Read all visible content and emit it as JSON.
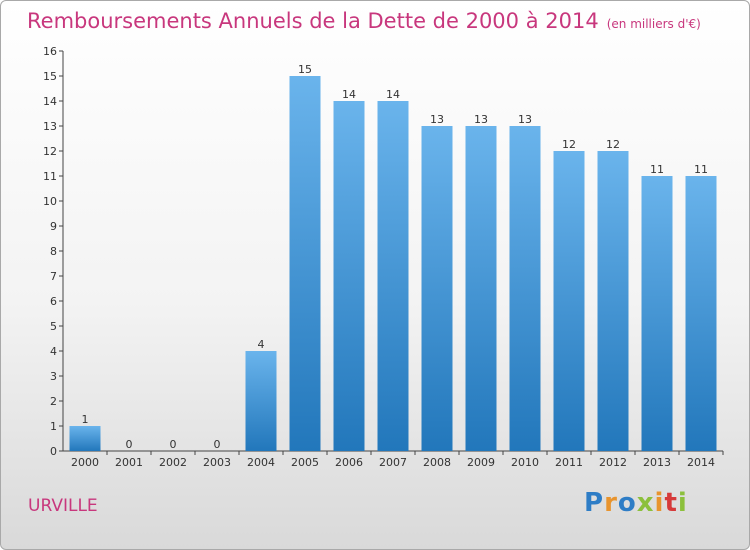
{
  "header": {
    "title": "Remboursements Annuels de la Dette de 2000 à 2014",
    "unit": "(en milliers d'€)"
  },
  "footer": {
    "place": "URVILLE",
    "logo": "Proxiti"
  },
  "colors": {
    "title": "#c8377d",
    "bar_light": "#6ab4ec",
    "bar_dark": "#2277bb",
    "logo": [
      "#2e7dc6",
      "#e8942e",
      "#2e7dc6",
      "#8cc03c",
      "#e8942e",
      "#d63a3a",
      "#8cc03c"
    ]
  },
  "chart_data": {
    "type": "bar",
    "categories": [
      "2000",
      "2001",
      "2002",
      "2003",
      "2004",
      "2005",
      "2006",
      "2007",
      "2008",
      "2009",
      "2010",
      "2011",
      "2012",
      "2013",
      "2014"
    ],
    "values": [
      1,
      0,
      0,
      0,
      4,
      15,
      14,
      14,
      13,
      13,
      13,
      12,
      12,
      11,
      11
    ],
    "data_labels": [
      "1",
      "0",
      "0",
      "0",
      "4",
      "15",
      "14",
      "14",
      "13",
      "13",
      "13",
      "12",
      "12",
      "11",
      "11"
    ],
    "yticks": [
      0,
      1,
      2,
      3,
      4,
      5,
      6,
      7,
      8,
      9,
      10,
      11,
      12,
      13,
      14,
      15,
      16
    ],
    "ylim": [
      0,
      16
    ],
    "title": "Remboursements Annuels de la Dette de 2000 à 2014",
    "xlabel": "",
    "ylabel": "",
    "grid": false
  }
}
